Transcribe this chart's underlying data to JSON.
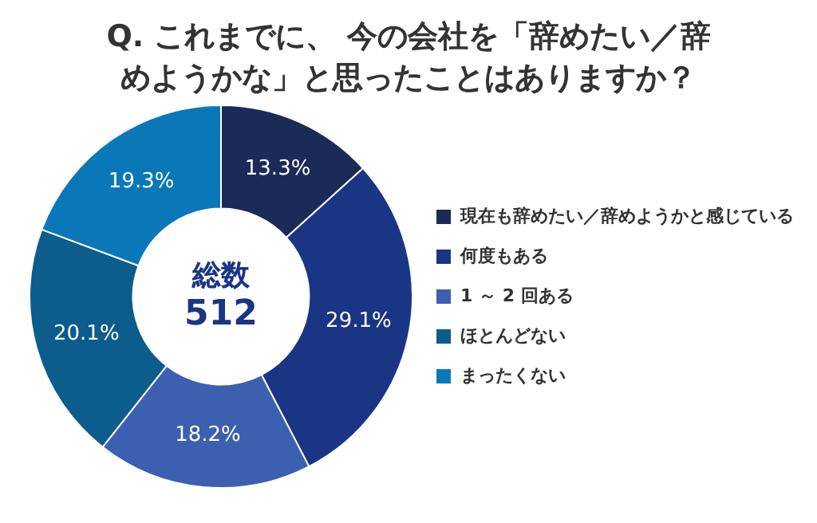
{
  "chart_data": {
    "type": "donut",
    "title": "Q. これまでに、 今の会社を「辞めたい／辞めようかな」と思ったことはありますか？",
    "categories": [
      "現在も辞めたい／辞めようかと感じている",
      "何度もある",
      "1 ～ 2 回ある",
      "ほとんどない",
      "まったくない"
    ],
    "values": [
      13.3,
      29.1,
      18.2,
      20.1,
      19.3
    ],
    "colors": [
      "#1b2a57",
      "#1a3584",
      "#3d5fb0",
      "#0c5c8c",
      "#0a78b8"
    ],
    "value_labels": [
      "13.3%",
      "29.1%",
      "18.2%",
      "20.1%",
      "19.3%"
    ],
    "annotations": [
      "総数",
      "512"
    ],
    "legend": "right"
  }
}
